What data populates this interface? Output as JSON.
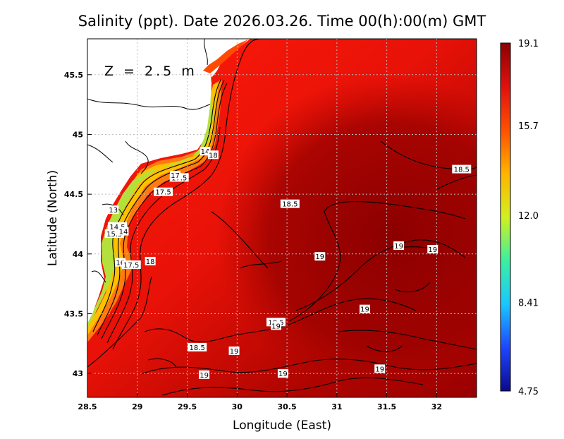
{
  "chart_data": {
    "type": "heatmap",
    "title": "Salinity (ppt). Date 2026.03.26. Time 00(h):00(m) GMT",
    "annotation": "Z = 2.5 m",
    "xlabel": "Longitude (East)",
    "ylabel": "Latitude (North)",
    "xlim": [
      28.5,
      32.4
    ],
    "ylim": [
      42.8,
      45.8
    ],
    "xticks": [
      "28.5",
      "29",
      "29.5",
      "30",
      "30.5",
      "31",
      "31.5",
      "32"
    ],
    "xtick_values": [
      28.5,
      29,
      29.5,
      30,
      30.5,
      31,
      31.5,
      32
    ],
    "yticks": [
      "43",
      "43.5",
      "44",
      "44.5",
      "45",
      "45.5"
    ],
    "ytick_values": [
      43,
      43.5,
      44,
      44.5,
      45,
      45.5
    ],
    "grid": true,
    "colorbar": {
      "ticks": [
        "19.1",
        "15.7",
        "12.0",
        "8.41",
        "4.75"
      ],
      "tick_values": [
        19.1,
        15.7,
        12.0,
        8.41,
        4.75
      ],
      "min": 4.75,
      "max": 19.1,
      "colors": [
        "#0a0a8c",
        "#1e46ff",
        "#19c8ff",
        "#3cf0a0",
        "#d2f01e",
        "#ffb400",
        "#ff5000",
        "#e01010",
        "#8c0000"
      ]
    },
    "contour_labels": [
      {
        "text": "18.5",
        "lon": 32.25,
        "lat": 44.71
      },
      {
        "text": "18.5",
        "lon": 30.53,
        "lat": 44.42
      },
      {
        "text": "19",
        "lon": 31.62,
        "lat": 44.07
      },
      {
        "text": "19",
        "lon": 31.96,
        "lat": 44.04
      },
      {
        "text": "19",
        "lon": 30.83,
        "lat": 43.98
      },
      {
        "text": "19",
        "lon": 31.28,
        "lat": 43.54
      },
      {
        "text": "18.5",
        "lon": 30.39,
        "lat": 43.43
      },
      {
        "text": "19",
        "lon": 30.39,
        "lat": 43.4
      },
      {
        "text": "18.5",
        "lon": 29.6,
        "lat": 43.22
      },
      {
        "text": "19",
        "lon": 29.97,
        "lat": 43.19
      },
      {
        "text": "19",
        "lon": 31.43,
        "lat": 43.04
      },
      {
        "text": "19",
        "lon": 29.67,
        "lat": 42.99
      },
      {
        "text": "19",
        "lon": 30.46,
        "lat": 43.0
      },
      {
        "text": "14",
        "lon": 29.68,
        "lat": 44.86
      },
      {
        "text": "18",
        "lon": 29.76,
        "lat": 44.83
      },
      {
        "text": "17.5",
        "lon": 29.26,
        "lat": 44.52
      },
      {
        "text": "17.5",
        "lon": 29.42,
        "lat": 44.64
      },
      {
        "text": "17",
        "lon": 29.38,
        "lat": 44.66
      },
      {
        "text": "13",
        "lon": 28.76,
        "lat": 44.37
      },
      {
        "text": "14.5",
        "lon": 28.8,
        "lat": 44.23
      },
      {
        "text": "15.5",
        "lon": 28.77,
        "lat": 44.17
      },
      {
        "text": "14",
        "lon": 28.86,
        "lat": 44.19
      },
      {
        "text": "16",
        "lon": 28.83,
        "lat": 43.93
      },
      {
        "text": "17.5",
        "lon": 28.94,
        "lat": 43.91
      },
      {
        "text": "18",
        "lon": 29.13,
        "lat": 43.94
      }
    ]
  }
}
